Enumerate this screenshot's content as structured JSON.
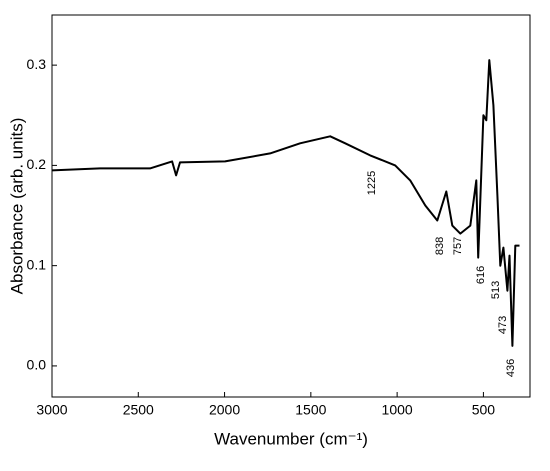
{
  "chart_data": {
    "type": "line",
    "xlabel": "Wavenumber (cm⁻¹)",
    "ylabel": "Absorbance (arb. units)",
    "x": [
      3000,
      2722,
      2432,
      2304,
      2281,
      2258,
      1997,
      1736,
      1562,
      1388,
      1301,
      1156,
      1011,
      924,
      837,
      767,
      715,
      680,
      634,
      576,
      541,
      530,
      500,
      483,
      466,
      442,
      419,
      402,
      384,
      361,
      349,
      332,
      315,
      291
    ],
    "values": [
      0.195,
      0.197,
      0.197,
      0.204,
      0.19,
      0.203,
      0.204,
      0.212,
      0.222,
      0.229,
      0.222,
      0.21,
      0.2,
      0.185,
      0.16,
      0.145,
      0.174,
      0.14,
      0.132,
      0.14,
      0.185,
      0.108,
      0.25,
      0.245,
      0.305,
      0.26,
      0.17,
      0.1,
      0.118,
      0.075,
      0.11,
      0.02,
      0.12,
      0.12
    ],
    "color": "#000000",
    "xlim": [
      3000,
      230
    ],
    "xticks": [
      3000,
      2500,
      2000,
      1500,
      1000,
      500
    ],
    "ylim": [
      -0.031,
      0.35
    ],
    "yticks": [
      {
        "value": 0,
        "label": "0.0"
      },
      0.1,
      0.2,
      0.3
    ],
    "annotations": [
      "1225",
      "838",
      "757",
      "616",
      "513",
      "473",
      "436"
    ]
  }
}
